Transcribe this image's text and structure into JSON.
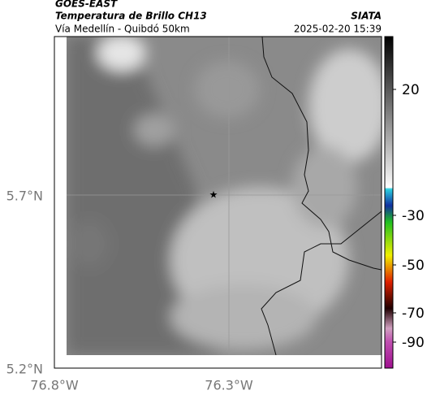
{
  "header": {
    "product": "GOES-EAST",
    "title": "Temperatura de Brillo CH13",
    "source": "SIATA",
    "route": "Vía Medellín - Quibdó 50km",
    "timestamp": "2025-02-20 15:39"
  },
  "axes": {
    "lat_labels": [
      "5.7°N",
      "5.2°N"
    ],
    "lon_labels": [
      "76.8°W",
      "76.3°W"
    ]
  },
  "colorbar": {
    "ticks": [
      "20",
      "-30",
      "-50",
      "-70",
      "-90"
    ]
  }
}
